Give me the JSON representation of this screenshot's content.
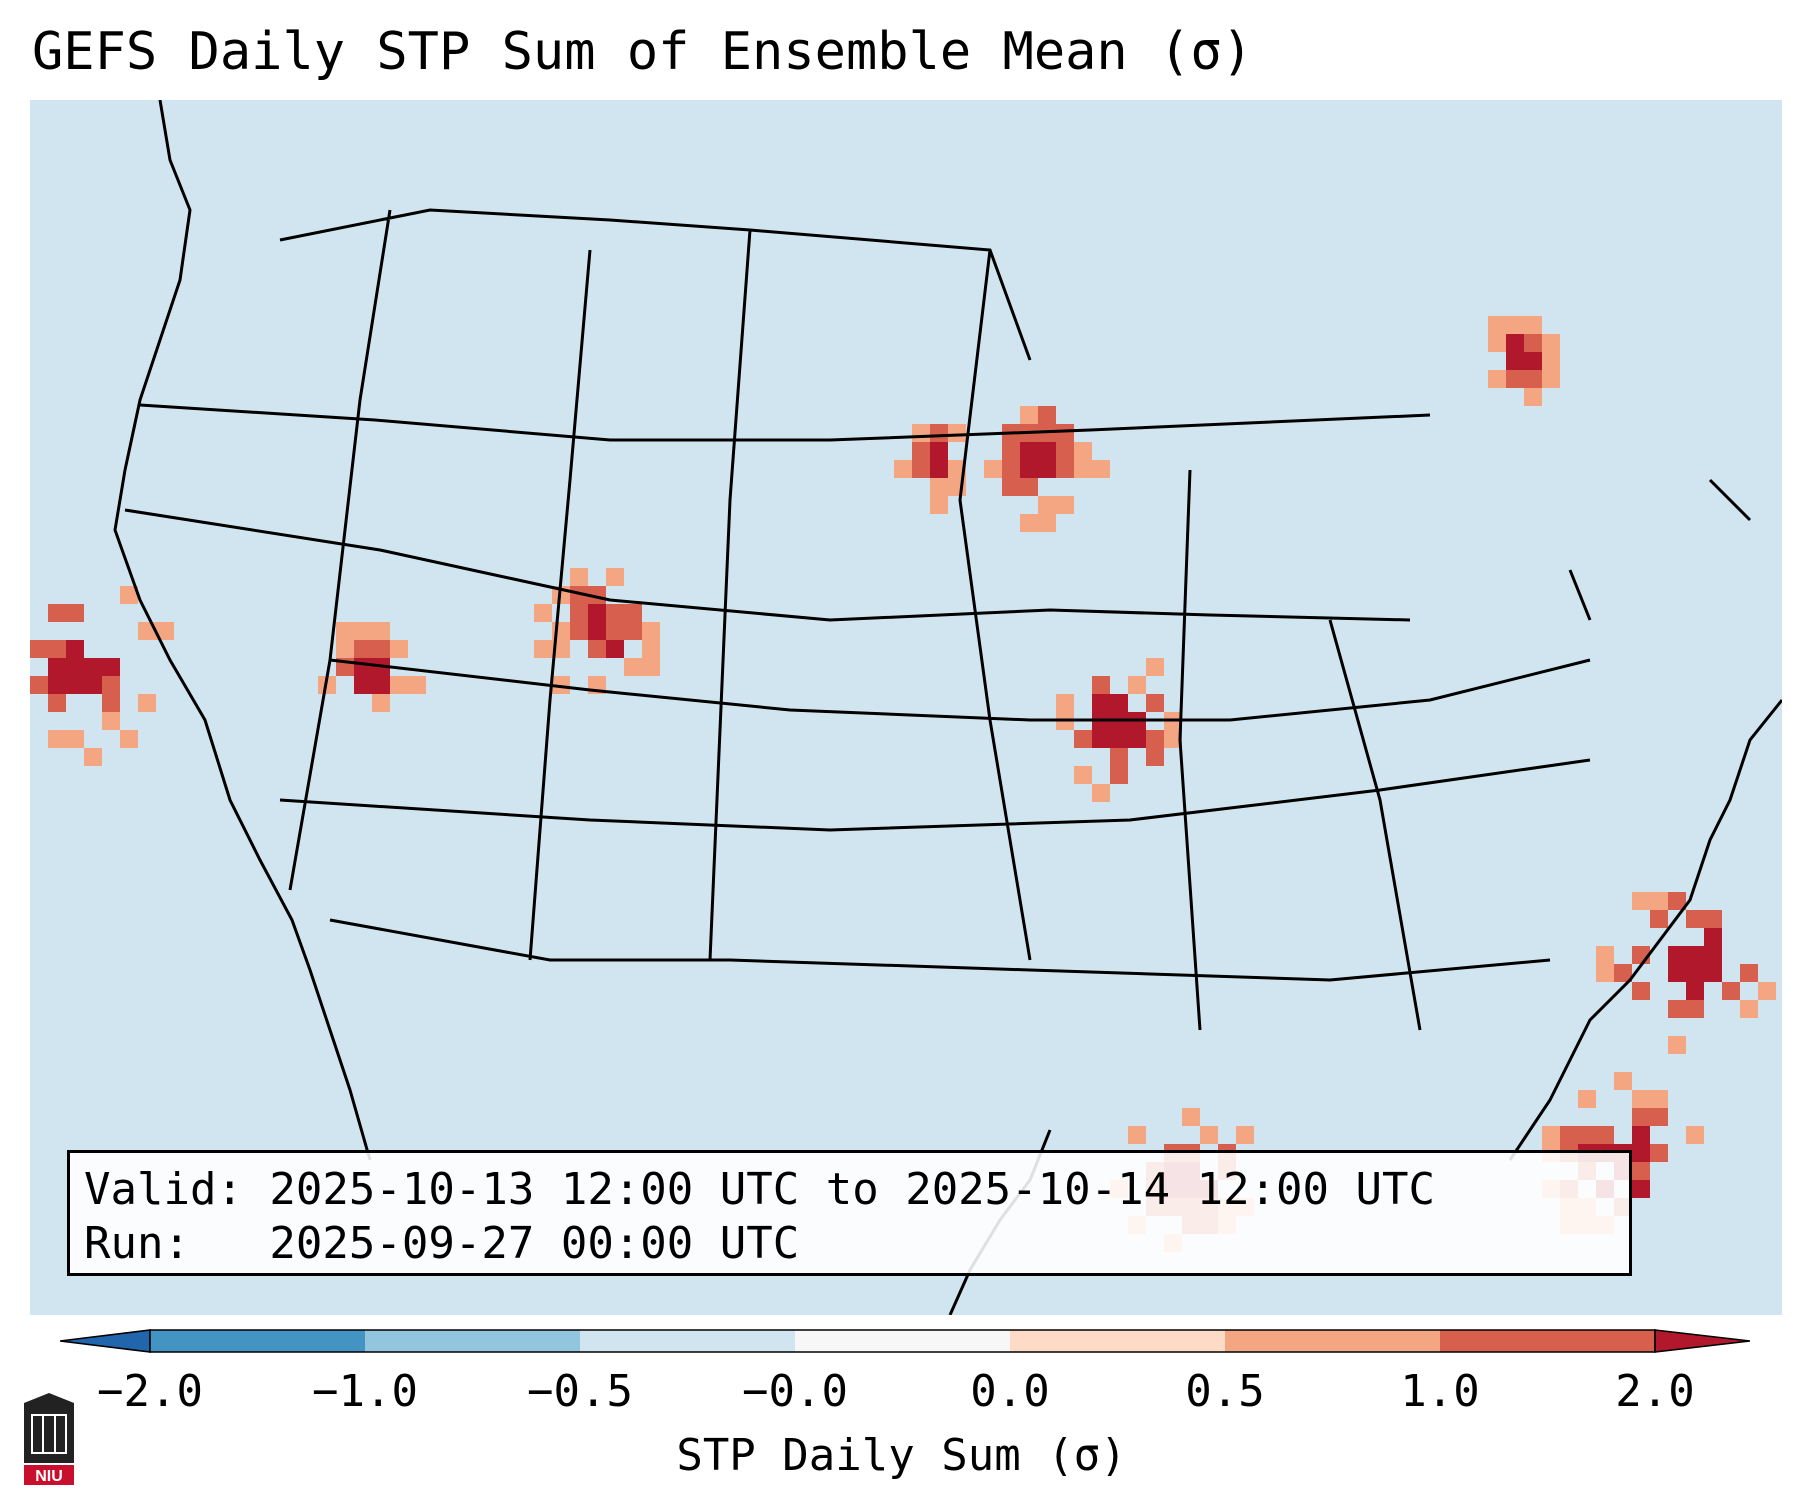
{
  "title": "GEFS Daily STP Sum of Ensemble Mean (σ)",
  "map": {
    "region": "Continental United States",
    "ocean_color": "#d1e5f0",
    "outline_color": "#000000"
  },
  "valid_line": "Valid: 2025-10-13 12:00 UTC to 2025-10-14 12:00 UTC",
  "run_line": "Run:   2025-09-27 00:00 UTC",
  "colorbar": {
    "label": "STP Daily Sum (σ)",
    "ticks": [
      "−2.0",
      "−1.0",
      "−0.5",
      "−0.0",
      "0.0",
      "0.5",
      "1.0",
      "2.0"
    ],
    "colors": [
      "#2166ac",
      "#4393c3",
      "#92c5de",
      "#d1e5f0",
      "#f7f7f7",
      "#fddbc7",
      "#f4a582",
      "#d6604d",
      "#b2182b"
    ]
  },
  "logo": {
    "name": "niu-logo",
    "text": "NIU"
  }
}
